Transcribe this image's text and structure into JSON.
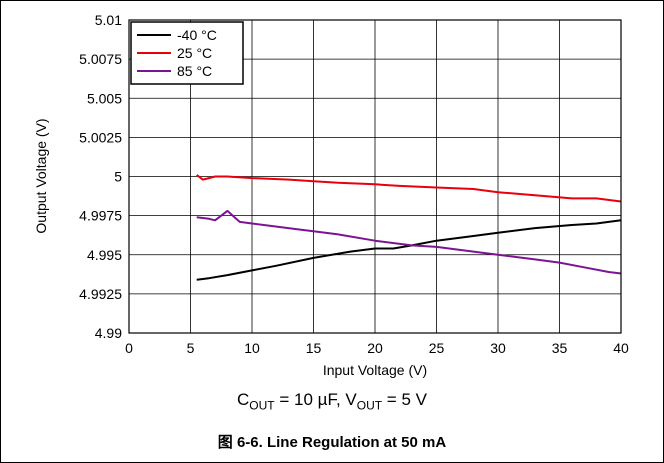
{
  "chart_data": {
    "type": "line",
    "title": "",
    "xlabel": "Input Voltage (V)",
    "ylabel": "Output Voltage (V)",
    "xlim": [
      0,
      40
    ],
    "ylim": [
      4.99,
      5.01
    ],
    "xticks": [
      0,
      5,
      10,
      15,
      20,
      25,
      30,
      35,
      40
    ],
    "yticks": [
      4.99,
      4.9925,
      4.995,
      4.9975,
      5,
      5.0025,
      5.005,
      5.0075,
      5.01
    ],
    "xtick_labels": [
      "0",
      "5",
      "10",
      "15",
      "20",
      "25",
      "30",
      "35",
      "40"
    ],
    "ytick_labels": [
      "4.99",
      "4.9925",
      "4.995",
      "4.9975",
      "5",
      "5.0025",
      "5.005",
      "5.0075",
      "5.01"
    ],
    "grid": true,
    "legend_position": "top-left",
    "series": [
      {
        "name": "-40  °C",
        "color": "#000000",
        "x": [
          5.5,
          6.5,
          8,
          10,
          12,
          15,
          18,
          20,
          21.5,
          23,
          25,
          28,
          30,
          33,
          36,
          38,
          40
        ],
        "y": [
          4.9934,
          4.9935,
          4.9937,
          4.994,
          4.9943,
          4.9948,
          4.9952,
          4.9954,
          4.9954,
          4.9956,
          4.9959,
          4.9962,
          4.9964,
          4.9967,
          4.9969,
          4.997,
          4.9972
        ]
      },
      {
        "name": "25 °C",
        "color": "#e8000b",
        "x": [
          5.5,
          6,
          6.5,
          7,
          8,
          10,
          13,
          15,
          17,
          20,
          22,
          25,
          28,
          30,
          33,
          36,
          38,
          40
        ],
        "y": [
          5.0001,
          4.9998,
          4.9999,
          5.0,
          5.0,
          4.9999,
          4.9998,
          4.9997,
          4.9996,
          4.9995,
          4.9994,
          4.9993,
          4.9992,
          4.999,
          4.9988,
          4.9986,
          4.9986,
          4.9984
        ]
      },
      {
        "name": "85 °C",
        "color": "#7b1493",
        "x": [
          5.5,
          6.5,
          7,
          8,
          9,
          10,
          12,
          14,
          15,
          17,
          20,
          23,
          25,
          28,
          30,
          33,
          35,
          37,
          39,
          40
        ],
        "y": [
          4.9974,
          4.9973,
          4.9972,
          4.9978,
          4.9971,
          4.997,
          4.9968,
          4.9966,
          4.9965,
          4.9963,
          4.9959,
          4.9956,
          4.9955,
          4.9952,
          4.995,
          4.9947,
          4.9945,
          4.9942,
          4.9939,
          4.9938
        ]
      }
    ]
  },
  "condition": {
    "c_symbol": "C",
    "c_sub": "OUT",
    "c_value": " = 10 µF, ",
    "v_symbol": "V",
    "v_sub": "OUT",
    "v_value": " = 5 V"
  },
  "caption": "图 6-6. Line Regulation at 50 mA"
}
